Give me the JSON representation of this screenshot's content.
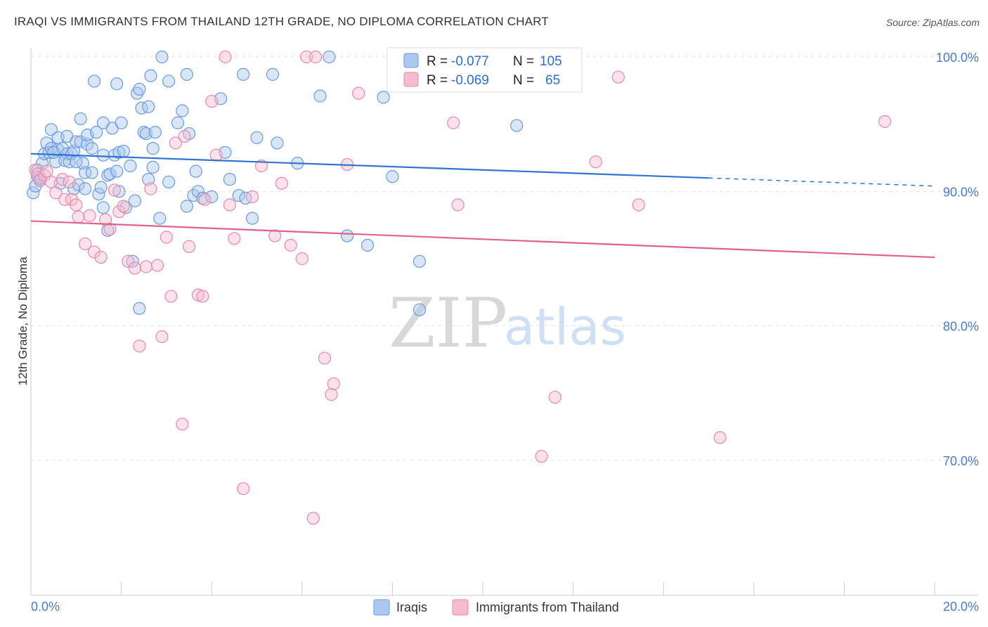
{
  "title": "IRAQI VS IMMIGRANTS FROM THAILAND 12TH GRADE, NO DIPLOMA CORRELATION CHART",
  "source": "Source: ZipAtlas.com",
  "watermark": {
    "zip": "ZIP",
    "atlas": "atlas"
  },
  "colors": {
    "blue": "#6a9be0",
    "blue_fill": "#aac8f0",
    "blue_line": "#2f74d0",
    "pink": "#e88aab",
    "pink_fill": "#f5bcd0",
    "pink_line": "#e0608e"
  },
  "legend": {
    "row1": {
      "r_label": "R = ",
      "r_value": "-0.077",
      "n_label": "N = ",
      "n_value": "105"
    },
    "row2": {
      "r_label": "R = ",
      "r_value": "-0.069",
      "n_label": "N = ",
      "n_value": "65"
    }
  },
  "bottom_legend": {
    "series1": "Iraqis",
    "series2": "Immigrants from Thailand"
  },
  "chart_data": {
    "type": "scatter",
    "title": "IRAQI VS IMMIGRANTS FROM THAILAND 12TH GRADE, NO DIPLOMA CORRELATION CHART",
    "xlabel": "",
    "ylabel": "12th Grade, No Diploma",
    "xlim": [
      0,
      20
    ],
    "ylim": [
      60.5,
      101.5
    ],
    "x_tick_labels": [
      "0.0%",
      "20.0%"
    ],
    "y_ticks": [
      70,
      80,
      90,
      100
    ],
    "y_tick_labels": [
      "70.0%",
      "80.0%",
      "90.0%",
      "100.0%"
    ],
    "grid": true,
    "legend_position": "top-center",
    "series": [
      {
        "name": "Iraqis",
        "r": -0.077,
        "n": 105,
        "trend": {
          "x": [
            0,
            15
          ],
          "y": [
            92.8,
            91.0
          ],
          "dashed_to": [
            20,
            90.4
          ]
        },
        "points": [
          [
            0.05,
            89.9
          ],
          [
            0.1,
            90.4
          ],
          [
            0.15,
            91.6
          ],
          [
            0.15,
            91.1
          ],
          [
            0.2,
            90.9
          ],
          [
            0.25,
            92.1
          ],
          [
            0.3,
            92.8
          ],
          [
            0.35,
            93.6
          ],
          [
            0.4,
            92.9
          ],
          [
            0.45,
            94.6
          ],
          [
            0.45,
            93.2
          ],
          [
            0.55,
            92.2
          ],
          [
            0.6,
            93.1
          ],
          [
            0.6,
            94.0
          ],
          [
            0.65,
            90.6
          ],
          [
            0.7,
            93.2
          ],
          [
            0.75,
            92.3
          ],
          [
            0.8,
            92.8
          ],
          [
            0.8,
            94.1
          ],
          [
            0.85,
            92.2
          ],
          [
            0.9,
            92.8
          ],
          [
            0.95,
            93.0
          ],
          [
            0.95,
            90.2
          ],
          [
            1.0,
            93.7
          ],
          [
            1.05,
            90.5
          ],
          [
            1.1,
            93.7
          ],
          [
            1.1,
            95.4
          ],
          [
            1.15,
            92.1
          ],
          [
            1.2,
            91.4
          ],
          [
            1.2,
            90.2
          ],
          [
            1.25,
            93.5
          ],
          [
            1.25,
            94.2
          ],
          [
            1.35,
            91.4
          ],
          [
            1.35,
            93.2
          ],
          [
            1.4,
            98.2
          ],
          [
            1.45,
            94.4
          ],
          [
            1.5,
            89.8
          ],
          [
            1.55,
            90.3
          ],
          [
            1.6,
            92.7
          ],
          [
            1.6,
            88.8
          ],
          [
            1.6,
            95.1
          ],
          [
            1.7,
            91.2
          ],
          [
            1.7,
            87.1
          ],
          [
            1.75,
            91.3
          ],
          [
            1.8,
            94.7
          ],
          [
            1.85,
            92.7
          ],
          [
            1.9,
            98.0
          ],
          [
            1.95,
            92.9
          ],
          [
            1.95,
            90.0
          ],
          [
            2.0,
            95.1
          ],
          [
            2.05,
            93.0
          ],
          [
            2.1,
            88.8
          ],
          [
            2.2,
            91.9
          ],
          [
            2.3,
            89.3
          ],
          [
            2.25,
            84.8
          ],
          [
            2.35,
            97.3
          ],
          [
            2.4,
            81.3
          ],
          [
            2.4,
            97.6
          ],
          [
            2.45,
            96.2
          ],
          [
            2.5,
            94.4
          ],
          [
            2.55,
            94.3
          ],
          [
            2.6,
            96.3
          ],
          [
            2.6,
            90.9
          ],
          [
            2.65,
            98.6
          ],
          [
            2.7,
            93.2
          ],
          [
            2.7,
            91.8
          ],
          [
            2.75,
            94.4
          ],
          [
            2.85,
            88.0
          ],
          [
            2.9,
            100.0
          ],
          [
            3.05,
            98.2
          ],
          [
            3.05,
            90.7
          ],
          [
            3.25,
            95.1
          ],
          [
            3.35,
            96.0
          ],
          [
            3.45,
            88.9
          ],
          [
            3.45,
            98.7
          ],
          [
            3.5,
            94.3
          ],
          [
            3.6,
            89.7
          ],
          [
            3.65,
            91.5
          ],
          [
            3.7,
            90.0
          ],
          [
            3.8,
            89.5
          ],
          [
            4.0,
            89.6
          ],
          [
            4.2,
            96.9
          ],
          [
            4.3,
            92.9
          ],
          [
            4.4,
            90.9
          ],
          [
            4.6,
            89.7
          ],
          [
            4.7,
            98.7
          ],
          [
            4.75,
            89.5
          ],
          [
            4.9,
            88.0
          ],
          [
            5.0,
            94.0
          ],
          [
            5.35,
            98.7
          ],
          [
            5.45,
            93.6
          ],
          [
            5.9,
            92.1
          ],
          [
            6.4,
            97.1
          ],
          [
            6.6,
            100.0
          ],
          [
            7.0,
            86.7
          ],
          [
            7.45,
            86.0
          ],
          [
            7.8,
            97.0
          ],
          [
            8.0,
            91.1
          ],
          [
            8.6,
            84.8
          ],
          [
            8.6,
            81.2
          ],
          [
            10.75,
            94.9
          ],
          [
            0.2,
            91.0
          ],
          [
            0.5,
            92.9
          ],
          [
            1.0,
            92.2
          ],
          [
            1.9,
            91.5
          ]
        ]
      },
      {
        "name": "Immigrants from Thailand",
        "r": -0.069,
        "n": 65,
        "trend": {
          "x": [
            0,
            20
          ],
          "y": [
            87.8,
            85.1
          ]
        },
        "points": [
          [
            0.1,
            91.6
          ],
          [
            0.15,
            91.3
          ],
          [
            0.2,
            90.8
          ],
          [
            0.3,
            91.2
          ],
          [
            0.35,
            91.5
          ],
          [
            0.45,
            90.7
          ],
          [
            0.55,
            89.9
          ],
          [
            0.7,
            90.9
          ],
          [
            0.75,
            89.4
          ],
          [
            0.85,
            90.7
          ],
          [
            0.9,
            89.4
          ],
          [
            1.0,
            89.0
          ],
          [
            1.05,
            88.1
          ],
          [
            1.2,
            86.1
          ],
          [
            1.3,
            88.2
          ],
          [
            1.4,
            85.5
          ],
          [
            1.55,
            85.1
          ],
          [
            1.65,
            87.9
          ],
          [
            1.75,
            87.2
          ],
          [
            1.85,
            90.1
          ],
          [
            1.95,
            88.5
          ],
          [
            2.05,
            88.9
          ],
          [
            2.15,
            84.8
          ],
          [
            2.3,
            84.3
          ],
          [
            2.4,
            78.5
          ],
          [
            2.55,
            84.4
          ],
          [
            2.65,
            90.2
          ],
          [
            2.8,
            84.5
          ],
          [
            2.9,
            79.2
          ],
          [
            3.0,
            86.6
          ],
          [
            3.1,
            82.2
          ],
          [
            3.2,
            93.6
          ],
          [
            3.35,
            72.7
          ],
          [
            3.4,
            94.1
          ],
          [
            3.5,
            85.9
          ],
          [
            3.7,
            82.3
          ],
          [
            3.8,
            82.2
          ],
          [
            3.85,
            89.4
          ],
          [
            4.0,
            96.7
          ],
          [
            4.1,
            92.7
          ],
          [
            4.3,
            100.0
          ],
          [
            4.4,
            89.0
          ],
          [
            4.5,
            86.5
          ],
          [
            4.7,
            67.9
          ],
          [
            4.9,
            89.6
          ],
          [
            5.1,
            91.9
          ],
          [
            5.4,
            86.7
          ],
          [
            5.55,
            90.6
          ],
          [
            5.75,
            86.0
          ],
          [
            6.0,
            85.0
          ],
          [
            6.1,
            100.0
          ],
          [
            6.25,
            65.7
          ],
          [
            6.3,
            100.0
          ],
          [
            6.5,
            77.6
          ],
          [
            6.65,
            74.9
          ],
          [
            6.7,
            75.7
          ],
          [
            7.0,
            92.0
          ],
          [
            7.25,
            97.3
          ],
          [
            9.35,
            95.1
          ],
          [
            9.45,
            89.0
          ],
          [
            11.3,
            70.3
          ],
          [
            11.6,
            74.7
          ],
          [
            12.5,
            92.2
          ],
          [
            13.0,
            98.5
          ],
          [
            13.45,
            89.0
          ]
        ]
      }
    ],
    "extra_points_thailand": [
      [
        15.25,
        71.7
      ],
      [
        18.9,
        95.2
      ]
    ]
  },
  "labels": {
    "ylabel": "12th Grade, No Diploma"
  }
}
